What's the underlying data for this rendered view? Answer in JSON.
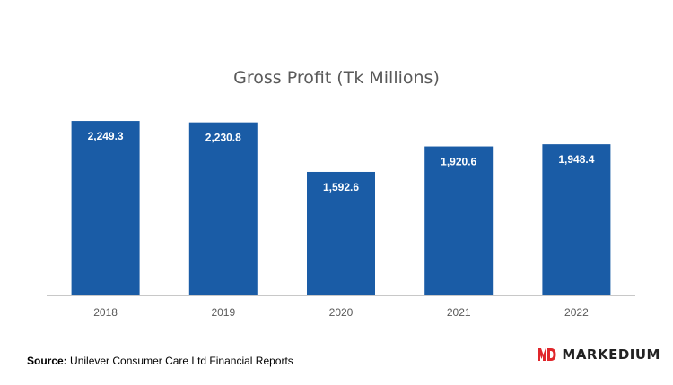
{
  "chart_data": {
    "type": "bar",
    "title": "Gross Profit (Tk Millions)",
    "categories": [
      "2018",
      "2019",
      "2020",
      "2021",
      "2022"
    ],
    "values": [
      2249.3,
      2230.8,
      1592.6,
      1920.6,
      1948.4
    ],
    "value_labels": [
      "2,249.3",
      "2,230.8",
      "1,592.6",
      "1,920.6",
      "1,948.4"
    ],
    "bar_color": "#1a5ca6",
    "ylim": [
      0,
      2400
    ],
    "grid": false,
    "legend": "none"
  },
  "footer": {
    "source_label": "Source:",
    "source_text": "Unilever Consumer Care Ltd Financial Reports"
  },
  "brand": {
    "name": "MARKEDIUM",
    "logo_color": "#e0262b"
  }
}
